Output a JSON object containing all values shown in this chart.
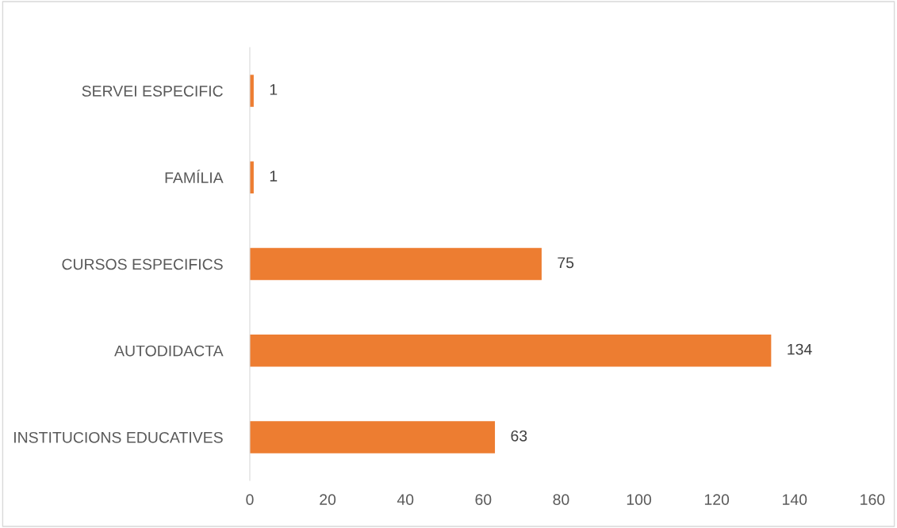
{
  "chart_data": {
    "type": "bar",
    "orientation": "horizontal",
    "categories": [
      "SERVEI ESPECIFIC",
      "FAMÍLIA",
      "CURSOS ESPECIFICS",
      "AUTODIDACTA",
      "INSTITUCIONS EDUCATIVES"
    ],
    "values": [
      1,
      1,
      75,
      134,
      63
    ],
    "color": "#ed7d31",
    "xlim": [
      0,
      160
    ],
    "xticks": [
      0,
      20,
      40,
      60,
      80,
      100,
      120,
      140,
      160
    ],
    "grid": false,
    "data_labels": true
  }
}
